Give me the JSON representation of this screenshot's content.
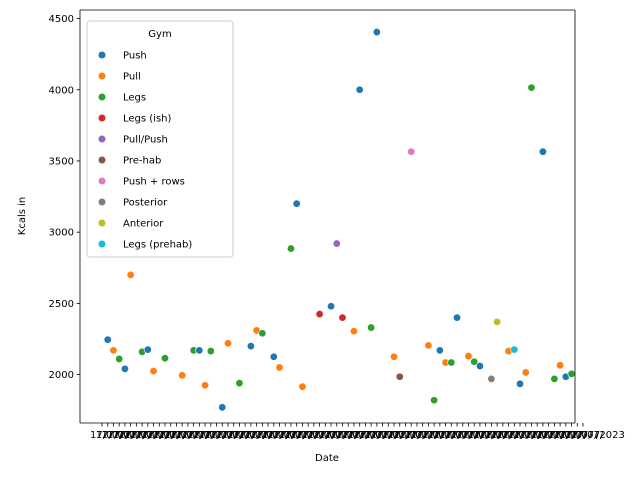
{
  "chart_data": {
    "type": "scatter",
    "xlabel": "Date",
    "ylabel": "Kcals in",
    "ylim": [
      1660,
      4560
    ],
    "yticks": [
      2000,
      2500,
      3000,
      3500,
      4000,
      4500
    ],
    "x_tick_count": 85,
    "x_tick_labels_note_visible": [
      "17/07/",
      "/2023"
    ],
    "legend": {
      "title": "Gym",
      "position": "upper left",
      "entries": [
        {
          "name": "Push",
          "color": "#1f77b4"
        },
        {
          "name": "Pull",
          "color": "#ff7f0e"
        },
        {
          "name": "Legs",
          "color": "#2ca02c"
        },
        {
          "name": "Legs (ish)",
          "color": "#d62728"
        },
        {
          "name": "Pull/Push",
          "color": "#9467bd"
        },
        {
          "name": "Pre-hab",
          "color": "#8c564b"
        },
        {
          "name": "Push + rows",
          "color": "#e377c2"
        },
        {
          "name": "Posterior",
          "color": "#7f7f7f"
        },
        {
          "name": "Anterior",
          "color": "#bcbd22"
        },
        {
          "name": "Legs (prehab)",
          "color": "#17becf"
        }
      ]
    },
    "points": [
      {
        "xi": 1,
        "y": 2245,
        "gym": "Push"
      },
      {
        "xi": 2,
        "y": 2170,
        "gym": "Pull"
      },
      {
        "xi": 3,
        "y": 2110,
        "gym": "Legs"
      },
      {
        "xi": 4,
        "y": 2040,
        "gym": "Push"
      },
      {
        "xi": 5,
        "y": 2700,
        "gym": "Pull"
      },
      {
        "xi": 7,
        "y": 2160,
        "gym": "Legs"
      },
      {
        "xi": 8,
        "y": 2175,
        "gym": "Push"
      },
      {
        "xi": 9,
        "y": 2025,
        "gym": "Pull"
      },
      {
        "xi": 11,
        "y": 2115,
        "gym": "Legs"
      },
      {
        "xi": 14,
        "y": 1995,
        "gym": "Pull"
      },
      {
        "xi": 16,
        "y": 2170,
        "gym": "Legs"
      },
      {
        "xi": 17,
        "y": 2170,
        "gym": "Push"
      },
      {
        "xi": 18,
        "y": 1925,
        "gym": "Pull"
      },
      {
        "xi": 19,
        "y": 2165,
        "gym": "Legs"
      },
      {
        "xi": 21,
        "y": 1770,
        "gym": "Push"
      },
      {
        "xi": 22,
        "y": 2220,
        "gym": "Pull"
      },
      {
        "xi": 24,
        "y": 1940,
        "gym": "Legs"
      },
      {
        "xi": 26,
        "y": 2200,
        "gym": "Push"
      },
      {
        "xi": 27,
        "y": 2310,
        "gym": "Pull"
      },
      {
        "xi": 28,
        "y": 2290,
        "gym": "Legs"
      },
      {
        "xi": 30,
        "y": 2125,
        "gym": "Push"
      },
      {
        "xi": 31,
        "y": 2050,
        "gym": "Pull"
      },
      {
        "xi": 33,
        "y": 2885,
        "gym": "Legs"
      },
      {
        "xi": 34,
        "y": 3200,
        "gym": "Push"
      },
      {
        "xi": 35,
        "y": 1915,
        "gym": "Pull"
      },
      {
        "xi": 38,
        "y": 2425,
        "gym": "Legs (ish)"
      },
      {
        "xi": 40,
        "y": 2480,
        "gym": "Push"
      },
      {
        "xi": 41,
        "y": 2920,
        "gym": "Pull/Push"
      },
      {
        "xi": 42,
        "y": 2400,
        "gym": "Legs (ish)"
      },
      {
        "xi": 44,
        "y": 2305,
        "gym": "Pull"
      },
      {
        "xi": 45,
        "y": 4000,
        "gym": "Push"
      },
      {
        "xi": 47,
        "y": 2330,
        "gym": "Legs"
      },
      {
        "xi": 48,
        "y": 4405,
        "gym": "Push"
      },
      {
        "xi": 51,
        "y": 2125,
        "gym": "Pull"
      },
      {
        "xi": 52,
        "y": 1985,
        "gym": "Pre-hab"
      },
      {
        "xi": 54,
        "y": 3565,
        "gym": "Push + rows"
      },
      {
        "xi": 57,
        "y": 2205,
        "gym": "Pull"
      },
      {
        "xi": 58,
        "y": 1820,
        "gym": "Legs"
      },
      {
        "xi": 59,
        "y": 2170,
        "gym": "Push"
      },
      {
        "xi": 60,
        "y": 2085,
        "gym": "Pull"
      },
      {
        "xi": 61,
        "y": 2085,
        "gym": "Legs"
      },
      {
        "xi": 62,
        "y": 2400,
        "gym": "Push"
      },
      {
        "xi": 64,
        "y": 2130,
        "gym": "Pull"
      },
      {
        "xi": 65,
        "y": 2090,
        "gym": "Legs"
      },
      {
        "xi": 66,
        "y": 2060,
        "gym": "Push"
      },
      {
        "xi": 68,
        "y": 1970,
        "gym": "Posterior"
      },
      {
        "xi": 69,
        "y": 2370,
        "gym": "Anterior"
      },
      {
        "xi": 71,
        "y": 2165,
        "gym": "Pull"
      },
      {
        "xi": 72,
        "y": 2175,
        "gym": "Legs (prehab)"
      },
      {
        "xi": 73,
        "y": 1935,
        "gym": "Push"
      },
      {
        "xi": 74,
        "y": 2015,
        "gym": "Pull"
      },
      {
        "xi": 75,
        "y": 4015,
        "gym": "Legs"
      },
      {
        "xi": 77,
        "y": 3565,
        "gym": "Push"
      },
      {
        "xi": 79,
        "y": 1970,
        "gym": "Legs"
      },
      {
        "xi": 80,
        "y": 2065,
        "gym": "Pull"
      },
      {
        "xi": 81,
        "y": 1985,
        "gym": "Push"
      },
      {
        "xi": 82,
        "y": 2005,
        "gym": "Legs"
      }
    ]
  }
}
